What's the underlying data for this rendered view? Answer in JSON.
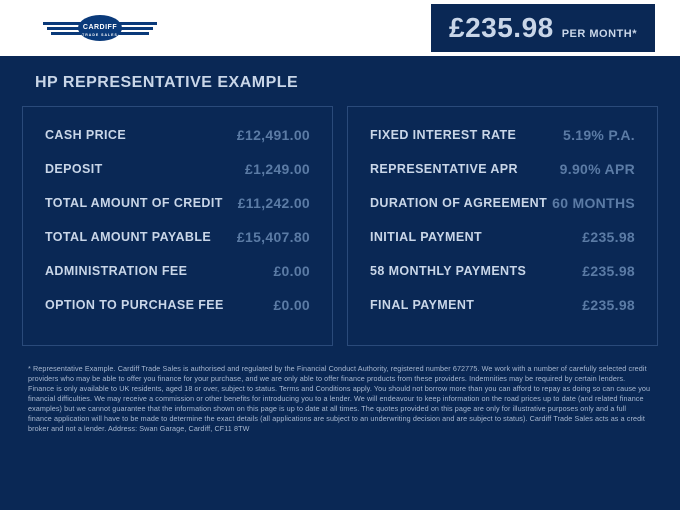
{
  "header": {
    "brand_name": "CARDIFF",
    "brand_sub": "TRADE SALES",
    "price": "£235.98",
    "period": "PER MONTH*"
  },
  "title": "HP REPRESENTATIVE EXAMPLE",
  "left": [
    {
      "label": "CASH PRICE",
      "value": "£12,491.00"
    },
    {
      "label": "DEPOSIT",
      "value": "£1,249.00"
    },
    {
      "label": "TOTAL AMOUNT OF CREDIT",
      "value": "£11,242.00"
    },
    {
      "label": "TOTAL AMOUNT PAYABLE",
      "value": "£15,407.80"
    },
    {
      "label": "ADMINISTRATION FEE",
      "value": "£0.00"
    },
    {
      "label": "OPTION TO PURCHASE FEE",
      "value": "£0.00"
    }
  ],
  "right": [
    {
      "label": "FIXED INTEREST RATE",
      "value": "5.19% P.A."
    },
    {
      "label": "REPRESENTATIVE APR",
      "value": "9.90% APR"
    },
    {
      "label": "DURATION OF AGREEMENT",
      "value": "60 MONTHS"
    },
    {
      "label": "INITIAL PAYMENT",
      "value": "£235.98"
    },
    {
      "label": "58 MONTHLY PAYMENTS",
      "value": "£235.98"
    },
    {
      "label": "FINAL PAYMENT",
      "value": "£235.98"
    }
  ],
  "disclaimer": "* Representative Example. Cardiff Trade Sales is authorised and regulated by the Financial Conduct Authority, registered number 672775. We work with a number of carefully selected credit providers who may be able to offer you finance for your purchase, and we are only able to offer finance products from these providers. Indemnities may be required by certain lenders. Finance is only available to UK residents, aged 18 or over, subject to status. Terms and Conditions apply. You should not borrow more than you can afford to repay as doing so can cause you financial difficulties. We may receive a commission or other benefits for introducing you to a lender. We will endeavour to keep information on the road prices up to date (and related finance examples) but we cannot guarantee that the information shown on this page is up to date at all times. The quotes provided on this page are only for illustrative purposes only and a full finance application will have to be made to determine the exact details (all applications are subject to an underwriting decision and are subject to status). Cardiff Trade Sales acts as a credit broker and not a lender. Address: Swan Garage, Cardiff, CF11 8TW",
  "colors": {
    "bg": "#0a2855",
    "header_bg": "#ffffff",
    "label": "#c9d6e8",
    "value": "#5b7ba5",
    "border": "#2a4a7a",
    "logo_blue": "#0a3a7a"
  }
}
